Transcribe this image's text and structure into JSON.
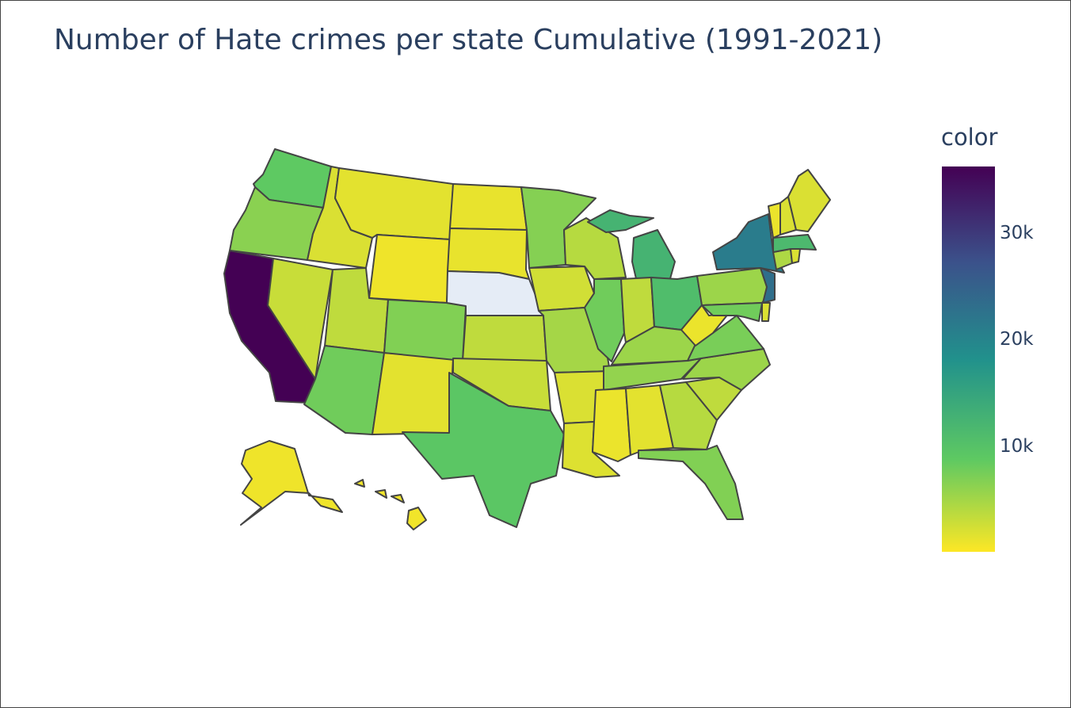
{
  "title": "Number of Hate crimes per state Cumulative (1991-2021)",
  "colorbar": {
    "title": "color",
    "ticks": [
      "10k",
      "20k",
      "30k"
    ],
    "tick_values": [
      10000,
      20000,
      30000
    ],
    "range": [
      0,
      36000
    ],
    "colorscale": [
      "#fde725",
      "#5ec962",
      "#21918c",
      "#3b528b",
      "#440154"
    ]
  },
  "no_data_color": "#e5ecf6",
  "states": [
    {
      "id": "WA",
      "value": 9000
    },
    {
      "id": "OR",
      "value": 6500
    },
    {
      "id": "CA",
      "value": 36000
    },
    {
      "id": "NV",
      "value": 3000
    },
    {
      "id": "ID",
      "value": 2000
    },
    {
      "id": "MT",
      "value": 1500
    },
    {
      "id": "WY",
      "value": 800
    },
    {
      "id": "UT",
      "value": 3500
    },
    {
      "id": "AZ",
      "value": 8000
    },
    {
      "id": "NM",
      "value": 1500
    },
    {
      "id": "CO",
      "value": 7000
    },
    {
      "id": "ND",
      "value": 1200
    },
    {
      "id": "SD",
      "value": 1200
    },
    {
      "id": "NE",
      "value": null
    },
    {
      "id": "KS",
      "value": 3500
    },
    {
      "id": "OK",
      "value": 3000
    },
    {
      "id": "TX",
      "value": 9500
    },
    {
      "id": "MN",
      "value": 6800
    },
    {
      "id": "IA",
      "value": 2500
    },
    {
      "id": "MO",
      "value": 5000
    },
    {
      "id": "AR",
      "value": 2000
    },
    {
      "id": "LA",
      "value": 1800
    },
    {
      "id": "WI",
      "value": 4000
    },
    {
      "id": "IL",
      "value": 8000
    },
    {
      "id": "MI",
      "value": 12500
    },
    {
      "id": "IN",
      "value": 3500
    },
    {
      "id": "OH",
      "value": 11000
    },
    {
      "id": "KY",
      "value": 5500
    },
    {
      "id": "TN",
      "value": 6000
    },
    {
      "id": "MS",
      "value": 1000
    },
    {
      "id": "AL",
      "value": 1500
    },
    {
      "id": "GA",
      "value": 4000
    },
    {
      "id": "FL",
      "value": 7000
    },
    {
      "id": "SC",
      "value": 3500
    },
    {
      "id": "NC",
      "value": 5500
    },
    {
      "id": "VA",
      "value": 7500
    },
    {
      "id": "WV",
      "value": 1000
    },
    {
      "id": "PA",
      "value": 5500
    },
    {
      "id": "NY",
      "value": 21000
    },
    {
      "id": "NJ",
      "value": 23000
    },
    {
      "id": "MD",
      "value": 8000
    },
    {
      "id": "DE",
      "value": 2000
    },
    {
      "id": "CT",
      "value": 4500
    },
    {
      "id": "RI",
      "value": 2000
    },
    {
      "id": "MA",
      "value": 11500
    },
    {
      "id": "VT",
      "value": 1000
    },
    {
      "id": "NH",
      "value": 2000
    },
    {
      "id": "ME",
      "value": 2000
    },
    {
      "id": "AK",
      "value": 800
    },
    {
      "id": "HI",
      "value": 700
    }
  ]
}
